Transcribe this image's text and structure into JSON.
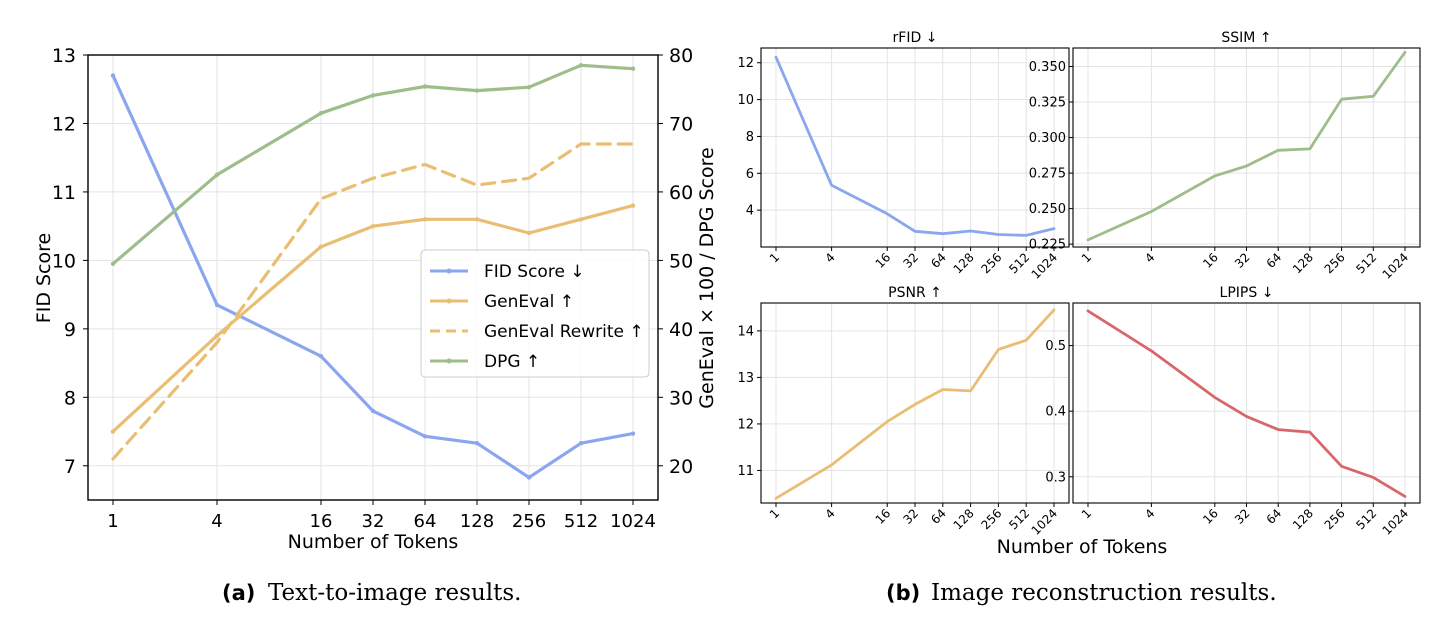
{
  "captions": {
    "a_tag": "(a)",
    "a_text": "Text-to-image results.",
    "b_tag": "(b)",
    "b_text": "Image reconstruction results."
  },
  "shared_xlabel_b": "Number of Tokens",
  "colors": {
    "blue": "#8aa6ee",
    "orange": "#e9be72",
    "green": "#9fbd8a",
    "red": "#d9676a",
    "grid": "#e3e3e3"
  },
  "chart_data": [
    {
      "type": "line",
      "title": "",
      "xlabel": "Number of Tokens",
      "ylabel": "FID Score",
      "y2label": "GenEval × 100 / DPG Score",
      "x_scale": "log2",
      "categories": [
        "1",
        "4",
        "16",
        "32",
        "64",
        "128",
        "256",
        "512",
        "1024"
      ],
      "x": [
        1,
        4,
        16,
        32,
        64,
        128,
        256,
        512,
        1024
      ],
      "ylim": [
        6.5,
        13
      ],
      "yticks": [
        7,
        8,
        9,
        10,
        11,
        12,
        13
      ],
      "y2lim": [
        15,
        80
      ],
      "y2ticks": [
        20,
        30,
        40,
        50,
        60,
        70,
        80
      ],
      "grid": true,
      "legend": "center-right",
      "series": [
        {
          "name": "FID Score ↓",
          "axis": "left",
          "style": "solid",
          "color": "#8aa6ee",
          "values": [
            12.7,
            9.35,
            8.6,
            7.8,
            7.43,
            7.33,
            6.83,
            7.33,
            7.47
          ]
        },
        {
          "name": "GenEval ↑",
          "axis": "right",
          "style": "solid",
          "color": "#e9be72",
          "values": [
            25,
            39,
            52,
            55,
            56,
            56,
            54,
            56,
            58
          ]
        },
        {
          "name": "GenEval Rewrite ↑",
          "axis": "right",
          "style": "dashed",
          "color": "#e9be72",
          "values": [
            21,
            38,
            59,
            62,
            64,
            61,
            62,
            67,
            67
          ]
        },
        {
          "name": "DPG ↑",
          "axis": "right",
          "style": "solid",
          "color": "#9fbd8a",
          "values": [
            49.5,
            62.5,
            71.5,
            74.1,
            75.4,
            74.8,
            75.3,
            78.5,
            78
          ]
        }
      ]
    },
    {
      "type": "line",
      "title": "rFID ↓",
      "x_scale": "log2",
      "categories": [
        "1",
        "4",
        "16",
        "32",
        "64",
        "128",
        "256",
        "512",
        "1024"
      ],
      "x": [
        1,
        4,
        16,
        32,
        64,
        128,
        256,
        512,
        1024
      ],
      "ylim": [
        2,
        12.8
      ],
      "yticks": [
        4,
        6,
        8,
        10,
        12
      ],
      "ytick_labels": [
        "4",
        "6",
        "8",
        "10",
        "12"
      ],
      "grid": true,
      "color": "#8aa6ee",
      "values": [
        12.3,
        5.35,
        3.8,
        2.85,
        2.72,
        2.87,
        2.68,
        2.63,
        3.0
      ]
    },
    {
      "type": "line",
      "title": "SSIM ↑",
      "x_scale": "log2",
      "categories": [
        "1",
        "4",
        "16",
        "32",
        "64",
        "128",
        "256",
        "512",
        "1024"
      ],
      "x": [
        1,
        4,
        16,
        32,
        64,
        128,
        256,
        512,
        1024
      ],
      "ylim": [
        0.223,
        0.363
      ],
      "yticks": [
        0.225,
        0.25,
        0.275,
        0.3,
        0.325,
        0.35
      ],
      "ytick_labels": [
        "0.225",
        "0.250",
        "0.275",
        "0.300",
        "0.325",
        "0.350"
      ],
      "grid": true,
      "color": "#9fbd8a",
      "values": [
        0.228,
        0.248,
        0.273,
        0.28,
        0.291,
        0.292,
        0.327,
        0.329,
        0.36
      ]
    },
    {
      "type": "line",
      "title": "PSNR ↑",
      "x_scale": "log2",
      "categories": [
        "1",
        "4",
        "16",
        "32",
        "64",
        "128",
        "256",
        "512",
        "1024"
      ],
      "x": [
        1,
        4,
        16,
        32,
        64,
        128,
        256,
        512,
        1024
      ],
      "ylim": [
        10.3,
        14.6
      ],
      "yticks": [
        11,
        12,
        13,
        14
      ],
      "ytick_labels": [
        "11",
        "12",
        "13",
        "14"
      ],
      "grid": true,
      "color": "#e9be72",
      "values": [
        10.4,
        11.12,
        12.05,
        12.42,
        12.74,
        12.71,
        13.6,
        13.8,
        14.45
      ]
    },
    {
      "type": "line",
      "title": "LPIPS ↓",
      "x_scale": "log2",
      "categories": [
        "1",
        "4",
        "16",
        "32",
        "64",
        "128",
        "256",
        "512",
        "1024"
      ],
      "x": [
        1,
        4,
        16,
        32,
        64,
        128,
        256,
        512,
        1024
      ],
      "ylim": [
        0.26,
        0.565
      ],
      "yticks": [
        0.3,
        0.4,
        0.5
      ],
      "ytick_labels": [
        "0.3",
        "0.4",
        "0.5"
      ],
      "grid": true,
      "color": "#d9676a",
      "values": [
        0.553,
        0.492,
        0.421,
        0.392,
        0.372,
        0.368,
        0.316,
        0.299,
        0.27
      ]
    }
  ]
}
